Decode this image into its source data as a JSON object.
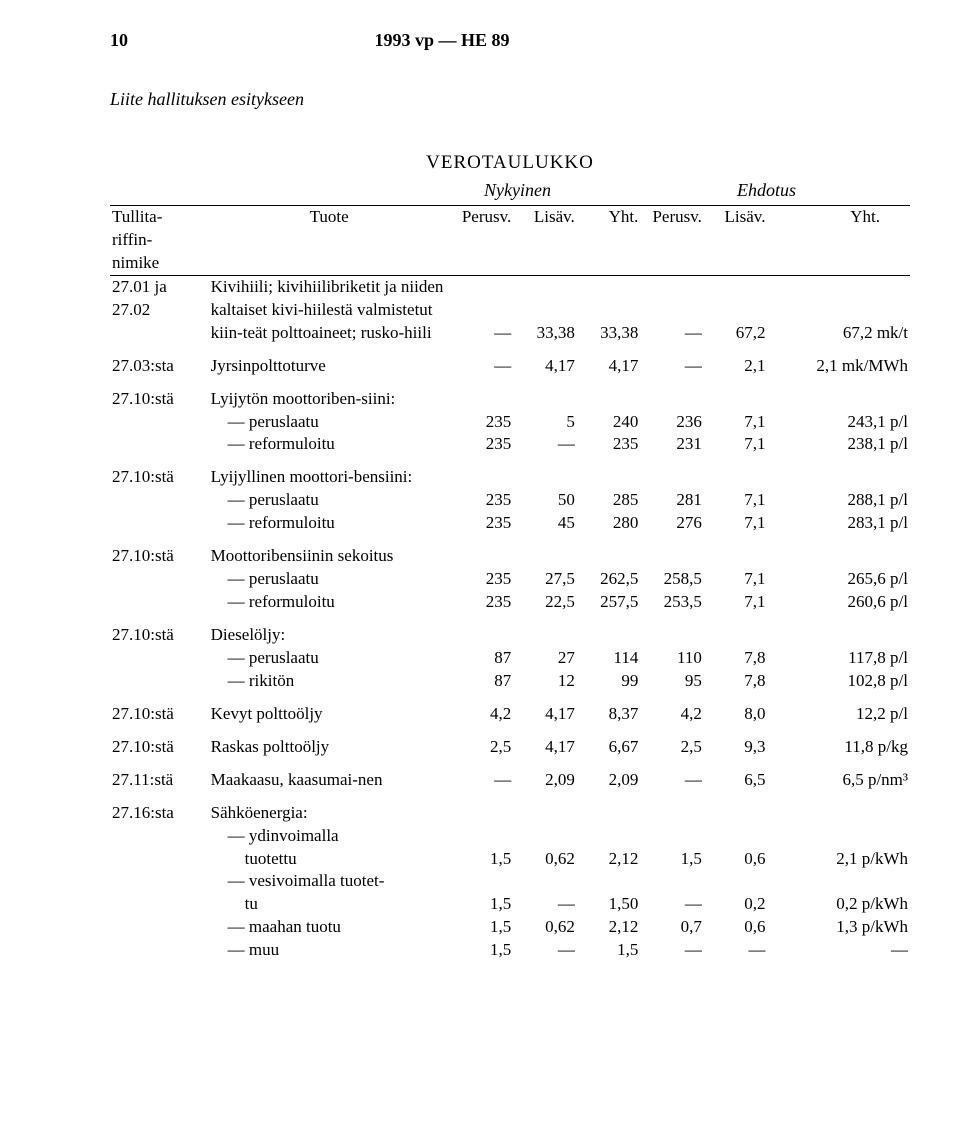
{
  "pageNumber": "10",
  "docRef": "1993 vp — HE 89",
  "attachment": "Liite hallituksen esitykseen",
  "tableTitle": "VEROTAULUKKO",
  "colGroupLabels": {
    "nykyinen": "Nykyinen",
    "ehdotus": "Ehdotus"
  },
  "headers": {
    "tariff": "Tullita-\nriffin-\nnimike",
    "product": "Tuote",
    "perusv": "Perusv.",
    "lisav": "Lisäv.",
    "yht": "Yht."
  },
  "rows": [
    {
      "code": "27.01 ja\n27.02",
      "product": "Kivihiili; kivihiilibriketit ja niiden kaltaiset kivi-hiilestä valmistetut kiin-teät polttoaineet; rusko-hiili",
      "nums": [
        "—",
        "33,38",
        "33,38",
        "—",
        "67,2",
        "67,2 mk/t"
      ]
    },
    {
      "code": "27.03:sta",
      "product": "Jyrsinpolttoturve",
      "nums": [
        "—",
        "4,17",
        "4,17",
        "—",
        "2,1",
        "2,1 mk/MWh"
      ]
    },
    {
      "code": "27.10:stä",
      "product": "Lyijytön moottoriben-siini:",
      "sub": [
        {
          "label": "— peruslaatu",
          "nums": [
            "235",
            "5",
            "240",
            "236",
            "7,1",
            "243,1 p/l"
          ]
        },
        {
          "label": "— reformuloitu",
          "nums": [
            "235",
            "—",
            "235",
            "231",
            "7,1",
            "238,1 p/l"
          ]
        }
      ]
    },
    {
      "code": "27.10:stä",
      "product": "Lyijyllinen moottori-bensiini:",
      "sub": [
        {
          "label": "— peruslaatu",
          "nums": [
            "235",
            "50",
            "285",
            "281",
            "7,1",
            "288,1 p/l"
          ]
        },
        {
          "label": "— reformuloitu",
          "nums": [
            "235",
            "45",
            "280",
            "276",
            "7,1",
            "283,1 p/l"
          ]
        }
      ]
    },
    {
      "code": "27.10:stä",
      "product": "Moottoribensiinin sekoitus",
      "sub": [
        {
          "label": "— peruslaatu",
          "nums": [
            "235",
            "27,5",
            "262,5",
            "258,5",
            "7,1",
            "265,6 p/l"
          ]
        },
        {
          "label": "— reformuloitu",
          "nums": [
            "235",
            "22,5",
            "257,5",
            "253,5",
            "7,1",
            "260,6 p/l"
          ]
        }
      ]
    },
    {
      "code": "27.10:stä",
      "product": "Dieselöljy:",
      "sub": [
        {
          "label": "— peruslaatu",
          "nums": [
            "87",
            "27",
            "114",
            "110",
            "7,8",
            "117,8 p/l"
          ]
        },
        {
          "label": "— rikitön",
          "nums": [
            "87",
            "12",
            "99",
            "95",
            "7,8",
            "102,8 p/l"
          ]
        }
      ]
    },
    {
      "code": "27.10:stä",
      "product": "Kevyt polttoöljy",
      "nums": [
        "4,2",
        "4,17",
        "8,37",
        "4,2",
        "8,0",
        "12,2 p/l"
      ]
    },
    {
      "code": "27.10:stä",
      "product": "Raskas polttoöljy",
      "nums": [
        "2,5",
        "4,17",
        "6,67",
        "2,5",
        "9,3",
        "11,8 p/kg"
      ]
    },
    {
      "code": "27.11:stä",
      "product": "Maakaasu, kaasumai-nen",
      "nums": [
        "—",
        "2,09",
        "2,09",
        "—",
        "6,5",
        "6,5 p/nm³"
      ]
    },
    {
      "code": "27.16:sta",
      "product": "Sähköenergia:",
      "sub": [
        {
          "label": "— ydinvoimalla\ntuotettu",
          "nums": [
            "1,5",
            "0,62",
            "2,12",
            "1,5",
            "0,6",
            "2,1 p/kWh"
          ]
        },
        {
          "label": "— vesivoimalla tuotet-\ntu",
          "nums": [
            "1,5",
            "—",
            "1,50",
            "—",
            "0,2",
            "0,2 p/kWh"
          ]
        },
        {
          "label": "— maahan tuotu",
          "nums": [
            "1,5",
            "0,62",
            "2,12",
            "0,7",
            "0,6",
            "1,3 p/kWh"
          ]
        },
        {
          "label": "— muu",
          "nums": [
            "1,5",
            "—",
            "1,5",
            "—",
            "—",
            "—"
          ]
        }
      ]
    }
  ],
  "style": {
    "fontFamily": "Times New Roman",
    "textColor": "#000000",
    "bgColor": "#ffffff",
    "ruleColor": "#000000",
    "bodyFontSize": 17,
    "titleFontSize": 19
  }
}
